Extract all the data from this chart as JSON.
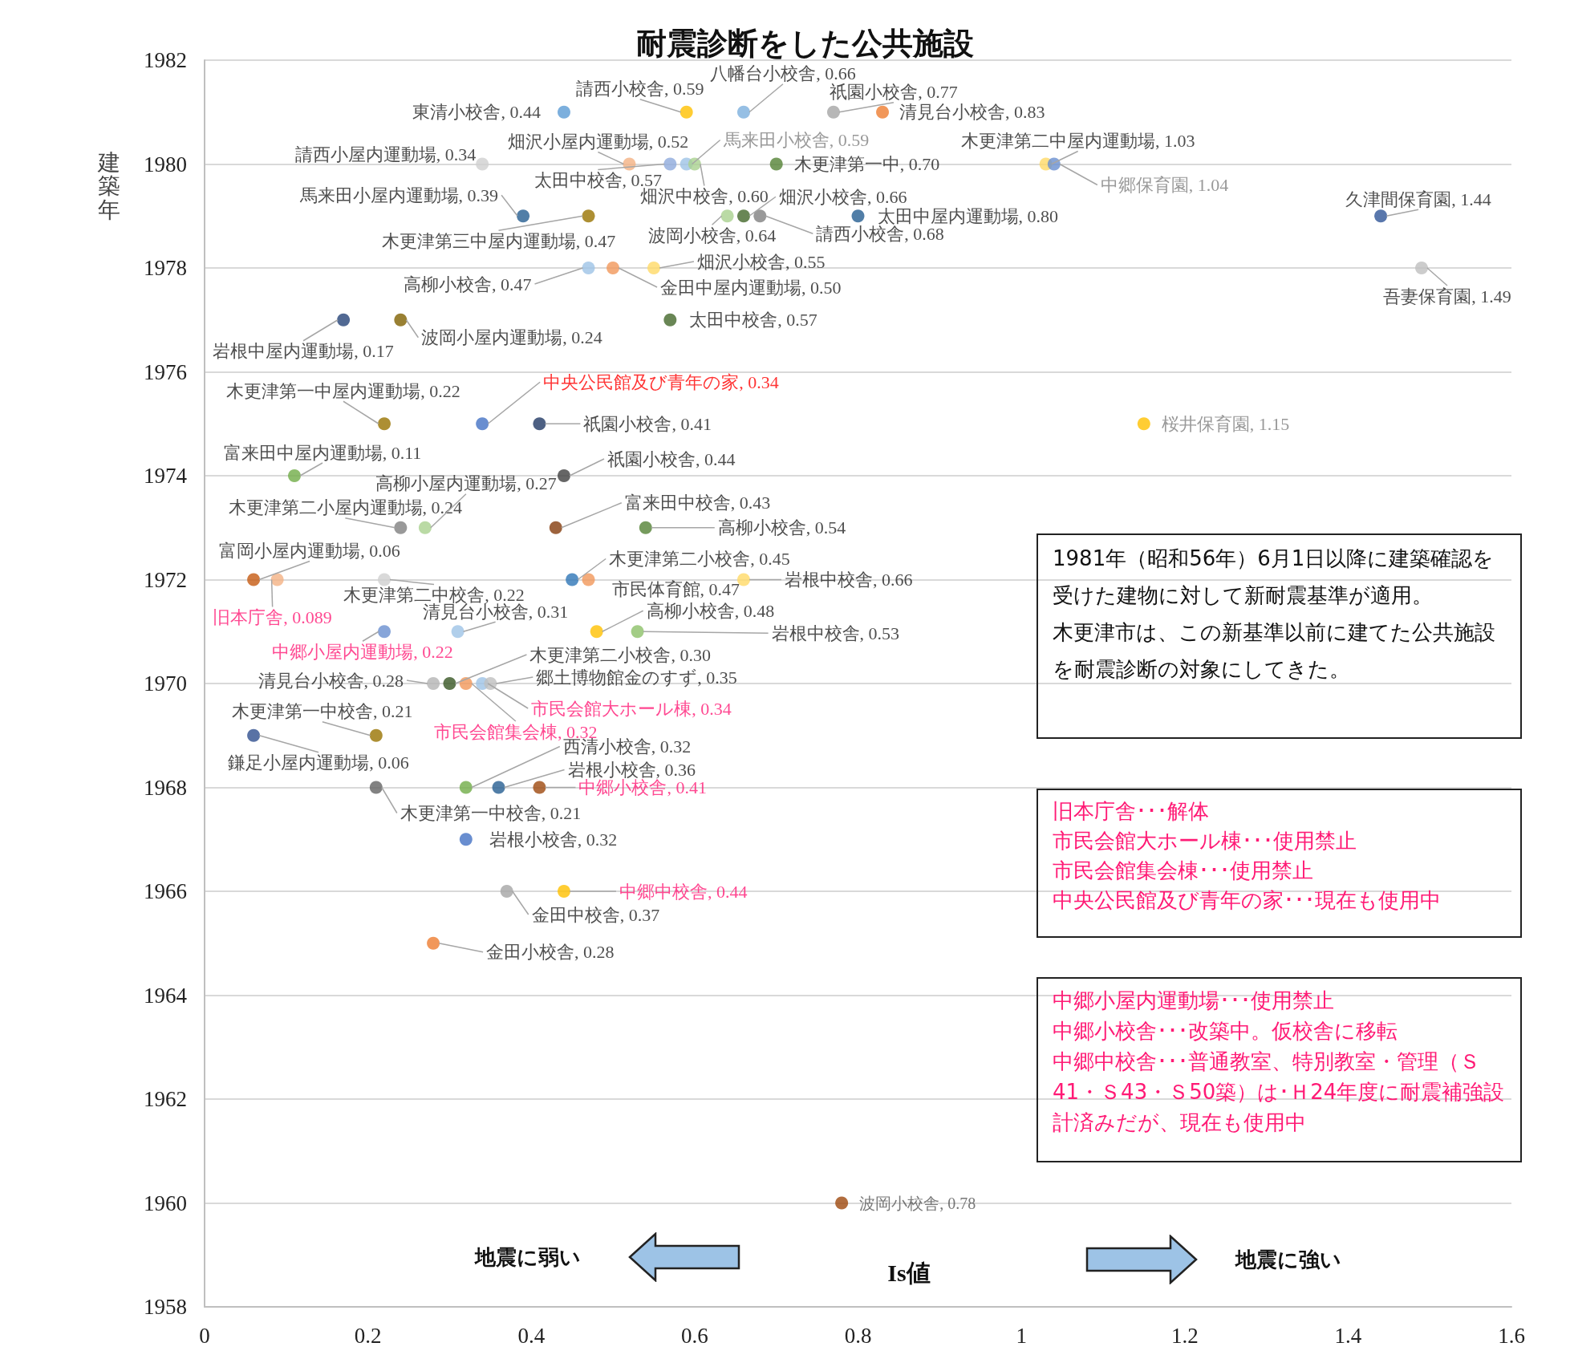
{
  "chart_data": {
    "type": "scatter",
    "title": "耐震診断をした公共施設",
    "xlabel": "Is値",
    "ylabel": "建築年",
    "xlim": [
      0,
      1.6
    ],
    "xticks": [
      0,
      0.2,
      0.4,
      0.6,
      0.8,
      1,
      1.2,
      1.4,
      1.6
    ],
    "ylim": [
      1958,
      1982
    ],
    "yticks": [
      1958,
      1960,
      1962,
      1964,
      1966,
      1968,
      1970,
      1972,
      1974,
      1976,
      1978,
      1980,
      1982
    ],
    "grid": "y",
    "marker": "circle",
    "x": [
      0.44,
      0.59,
      0.66,
      0.77,
      0.83,
      0.34,
      0.52,
      0.57,
      0.59,
      0.6,
      0.7,
      1.03,
      1.04,
      0.39,
      0.47,
      0.64,
      0.66,
      0.68,
      0.8,
      1.44,
      0.47,
      0.5,
      0.55,
      1.49,
      0.17,
      0.24,
      0.57,
      0.22,
      0.34,
      0.41,
      1.15,
      0.11,
      0.44,
      0.27,
      0.24,
      0.43,
      0.54,
      0.06,
      0.089,
      0.22,
      0.45,
      0.47,
      0.66,
      0.22,
      0.31,
      0.48,
      0.53,
      0.28,
      0.3,
      0.32,
      0.34,
      0.35,
      0.06,
      0.21,
      0.21,
      0.32,
      0.36,
      0.41,
      0.32,
      0.37,
      0.44,
      0.28,
      0.78
    ],
    "values": [
      1981,
      1981,
      1981,
      1981,
      1981,
      1980,
      1980,
      1980,
      1980,
      1980,
      1980,
      1980,
      1980,
      1979,
      1979,
      1979,
      1979,
      1979,
      1979,
      1979,
      1978,
      1978,
      1978,
      1978,
      1977,
      1977,
      1977,
      1975,
      1975,
      1975,
      1975,
      1974,
      1974,
      1973,
      1973,
      1973,
      1973,
      1972,
      1972,
      1972,
      1972,
      1972,
      1972,
      1971,
      1971,
      1971,
      1971,
      1970,
      1970,
      1970,
      1970,
      1970,
      1969,
      1969,
      1968,
      1968,
      1968,
      1968,
      1967,
      1966,
      1966,
      1965,
      1960
    ],
    "colors": [
      "#5b9bd5",
      "#ffc000",
      "#7cafdd",
      "#a5a5a5",
      "#ed7d31",
      "#d0d0d0",
      "#f4b183",
      "#8faadc",
      "#9dc3e6",
      "#a9d18e",
      "#548235",
      "#ffd966",
      "#698ed0",
      "#255e91",
      "#997300",
      "#a9d18e",
      "#43682b",
      "#7f7f7f",
      "#255e91",
      "#2f5597",
      "#9dc3e6",
      "#f1975a",
      "#ffd966",
      "#bfbfbf",
      "#264478",
      "#7f6000",
      "#43682b",
      "#997300",
      "#4472c4",
      "#203864",
      "#ffc000",
      "#70ad47",
      "#404040",
      "#a9d18e",
      "#7f7f7f",
      "#843c0c",
      "#548235",
      "#c55a11",
      "#f4b183",
      "#d0d0d0",
      "#2e75b6",
      "#f1975a",
      "#ffd966",
      "#698ed0",
      "#9dc3e6",
      "#ffc000",
      "#8cc168",
      "#b4b4b4",
      "#375623",
      "#f1975a",
      "#9dc3e6",
      "#bfbfbf",
      "#2f4f8f",
      "#997300",
      "#636363",
      "#70ad47",
      "#255e91",
      "#9e480e",
      "#4472c4",
      "#a5a5a5",
      "#ffc000",
      "#ed7d31",
      "#9e480e"
    ],
    "annotations": [
      {
        "text": "東清小校舎, 0.44",
        "x": 0.44,
        "y": 1981
      },
      {
        "text": "請西小校舎, 0.59",
        "x": 0.59,
        "y": 1981
      },
      {
        "text": "八幡台小校舎, 0.66",
        "x": 0.66,
        "y": 1981
      },
      {
        "text": "祇園小校舎, 0.77",
        "x": 0.77,
        "y": 1981
      },
      {
        "text": "清見台小校舎, 0.83",
        "x": 0.83,
        "y": 1981
      },
      {
        "text": "請西小屋内運動場, 0.34",
        "x": 0.34,
        "y": 1980
      },
      {
        "text": "畑沢小屋内運動場, 0.52",
        "x": 0.52,
        "y": 1980
      },
      {
        "text": "太田中校舎, 0.57",
        "x": 0.57,
        "y": 1980
      },
      {
        "text": "馬来田小校舎, 0.59",
        "x": 0.59,
        "y": 1980
      },
      {
        "text": "畑沢中校舎, 0.60",
        "x": 0.6,
        "y": 1980
      },
      {
        "text": "木更津第一中, 0.70",
        "x": 0.7,
        "y": 1980
      },
      {
        "text": "木更津第二中屋内運動場, 1.03",
        "x": 1.03,
        "y": 1980
      },
      {
        "text": "中郷保育園, 1.04",
        "x": 1.04,
        "y": 1980
      },
      {
        "text": "馬来田小屋内運動場, 0.39",
        "x": 0.39,
        "y": 1979
      },
      {
        "text": "木更津第三中屋内運動場, 0.47",
        "x": 0.47,
        "y": 1979
      },
      {
        "text": "波岡小校舎, 0.64",
        "x": 0.64,
        "y": 1979
      },
      {
        "text": "畑沢小校舎, 0.66",
        "x": 0.66,
        "y": 1979
      },
      {
        "text": "請西小校舎, 0.68",
        "x": 0.68,
        "y": 1979
      },
      {
        "text": "太田中屋内運動場, 0.80",
        "x": 0.8,
        "y": 1979
      },
      {
        "text": "久津間保育園, 1.44",
        "x": 1.44,
        "y": 1979
      },
      {
        "text": "高柳小校舎, 0.47",
        "x": 0.47,
        "y": 1978
      },
      {
        "text": "金田中屋内運動場, 0.50",
        "x": 0.5,
        "y": 1978
      },
      {
        "text": "畑沢小校舎, 0.55",
        "x": 0.55,
        "y": 1978
      },
      {
        "text": "吾妻保育園, 1.49",
        "x": 1.49,
        "y": 1978
      },
      {
        "text": "岩根中屋内運動場, 0.17",
        "x": 0.17,
        "y": 1977
      },
      {
        "text": "波岡小屋内運動場, 0.24",
        "x": 0.24,
        "y": 1977
      },
      {
        "text": "太田中校舎, 0.57",
        "x": 0.57,
        "y": 1977
      },
      {
        "text": "木更津第一中屋内運動場, 0.22",
        "x": 0.22,
        "y": 1975
      },
      {
        "text": "中央公民館及び青年の家, 0.34",
        "x": 0.34,
        "y": 1975
      },
      {
        "text": "祇園小校舎, 0.41",
        "x": 0.41,
        "y": 1975
      },
      {
        "text": "桜井保育園, 1.15",
        "x": 1.15,
        "y": 1975
      },
      {
        "text": "富来田中屋内運動場, 0.11",
        "x": 0.11,
        "y": 1974
      },
      {
        "text": "祇園小校舎, 0.44",
        "x": 0.44,
        "y": 1974
      },
      {
        "text": "高柳小屋内運動場, 0.27",
        "x": 0.27,
        "y": 1973
      },
      {
        "text": "木更津第二小屋内運動場, 0.24",
        "x": 0.24,
        "y": 1973
      },
      {
        "text": "富来田中校舎, 0.43",
        "x": 0.43,
        "y": 1973
      },
      {
        "text": "高柳小校舎, 0.54",
        "x": 0.54,
        "y": 1973
      },
      {
        "text": "富岡小屋内運動場, 0.06",
        "x": 0.06,
        "y": 1972
      },
      {
        "text": "旧本庁舎, 0.089",
        "x": 0.089,
        "y": 1972
      },
      {
        "text": "木更津第二中校舎, 0.22",
        "x": 0.22,
        "y": 1972
      },
      {
        "text": "木更津第二小校舎, 0.45",
        "x": 0.45,
        "y": 1972
      },
      {
        "text": "市民体育館, 0.47",
        "x": 0.47,
        "y": 1972
      },
      {
        "text": "岩根中校舎, 0.66",
        "x": 0.66,
        "y": 1972
      },
      {
        "text": "中郷小屋内運動場, 0.22",
        "x": 0.22,
        "y": 1971
      },
      {
        "text": "清見台小校舎, 0.31",
        "x": 0.31,
        "y": 1971
      },
      {
        "text": "高柳小校舎, 0.48",
        "x": 0.48,
        "y": 1971
      },
      {
        "text": "岩根中校舎, 0.53",
        "x": 0.53,
        "y": 1971
      },
      {
        "text": "清見台小校舎, 0.28",
        "x": 0.28,
        "y": 1970
      },
      {
        "text": "木更津第二小校舎, 0.30",
        "x": 0.3,
        "y": 1970
      },
      {
        "text": "市民会館集会棟, 0.32",
        "x": 0.32,
        "y": 1970
      },
      {
        "text": "市民会館大ホール棟, 0.34",
        "x": 0.34,
        "y": 1970
      },
      {
        "text": "郷土博物館金のすず, 0.35",
        "x": 0.35,
        "y": 1970
      },
      {
        "text": "鎌足小屋内運動場, 0.06",
        "x": 0.06,
        "y": 1969
      },
      {
        "text": "木更津第一中校舎, 0.21",
        "x": 0.21,
        "y": 1969
      },
      {
        "text": "木更津第一中校舎, 0.21",
        "x": 0.21,
        "y": 1968
      },
      {
        "text": "西清小校舎, 0.32",
        "x": 0.32,
        "y": 1968
      },
      {
        "text": "岩根小校舎, 0.36",
        "x": 0.36,
        "y": 1968
      },
      {
        "text": "中郷小校舎, 0.41",
        "x": 0.41,
        "y": 1968
      },
      {
        "text": "岩根小校舎, 0.32",
        "x": 0.32,
        "y": 1967
      },
      {
        "text": "金田中校舎, 0.37",
        "x": 0.37,
        "y": 1966
      },
      {
        "text": "中郷中校舎, 0.44",
        "x": 0.44,
        "y": 1966
      },
      {
        "text": "金田小校舎, 0.28",
        "x": 0.28,
        "y": 1965
      },
      {
        "text": "波岡小校舎, 0.78",
        "x": 0.78,
        "y": 1960
      },
      "1981年（昭和56年）6月1日以降に建築確認を受けた建物に対して新耐震基準が適用。",
      "木更津市は、この新基準以前に建てた公共施設を耐震診断の対象にしてきた。",
      "旧本庁舎･･･解体",
      "市民会館大ホール棟･･･使用禁止",
      "市民会館集会棟･･･使用禁止",
      "中央公民館及び青年の家･･･現在も使用中",
      "中郷小屋内運動場･･･使用禁止",
      "中郷小校舎･･･改築中。仮校舎に移転",
      "中郷中校舎･･･普通教室、特別教室・管理（Ｓ41・Ｓ43・Ｓ50築）は･Ｈ24年度に耐震補強設計済みだが、現在も使用中",
      "地震に弱い",
      "地震に強い"
    ]
  }
}
